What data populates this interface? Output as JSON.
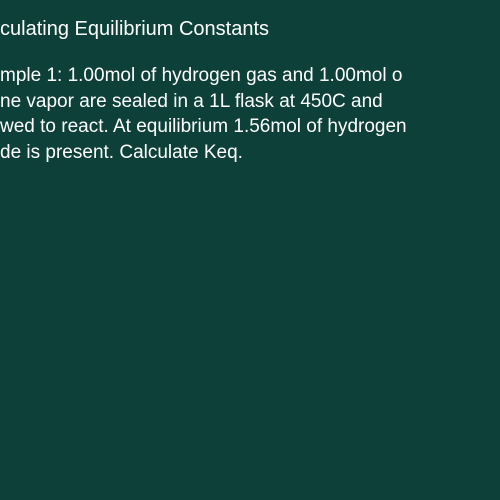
{
  "slide": {
    "title": "culating Equilibrium Constants",
    "line1": "mple 1:  1.00mol of hydrogen gas and 1.00mol o",
    "line2": "ne vapor are sealed in a 1L flask at 450C and",
    "line3": "wed to react. At equilibrium 1.56mol of hydrogen",
    "line4": "de is present.  Calculate Keq."
  },
  "styling": {
    "background_color": "#0d4038",
    "text_color": "#ffffff",
    "title_fontsize": 20,
    "body_fontsize": 19,
    "font_family": "Arial"
  }
}
